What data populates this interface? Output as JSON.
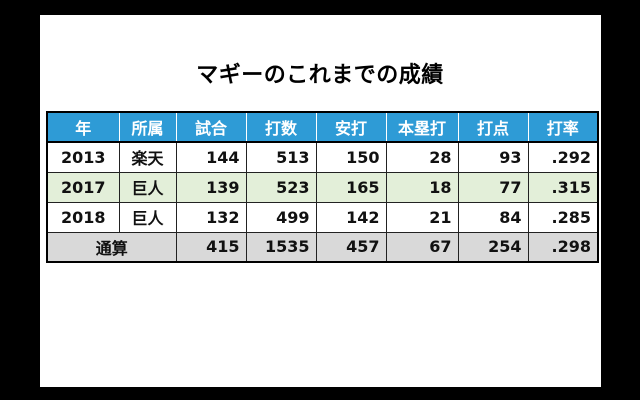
{
  "title": "マギーのこれまでの成績",
  "columns": [
    "年",
    "所属",
    "試合",
    "打数",
    "安打",
    "本塁打",
    "打点",
    "打率"
  ],
  "rows": [
    {
      "year": "2013",
      "team": "楽天",
      "games": "144",
      "at_bats": "513",
      "hits": "150",
      "home_runs": "28",
      "rbi": "93",
      "avg": ".292"
    },
    {
      "year": "2017",
      "team": "巨人",
      "games": "139",
      "at_bats": "523",
      "hits": "165",
      "home_runs": "18",
      "rbi": "77",
      "avg": ".315"
    },
    {
      "year": "2018",
      "team": "巨人",
      "games": "132",
      "at_bats": "499",
      "hits": "142",
      "home_runs": "21",
      "rbi": "84",
      "avg": ".285"
    }
  ],
  "total": {
    "label": "通算",
    "games": "415",
    "at_bats": "1535",
    "hits": "457",
    "home_runs": "67",
    "rbi": "254",
    "avg": ".298"
  },
  "colors": {
    "header": "#2e9bd6",
    "alt_row": "#e3efd9",
    "total_row": "#d9d9d9",
    "frame": "#000000"
  }
}
